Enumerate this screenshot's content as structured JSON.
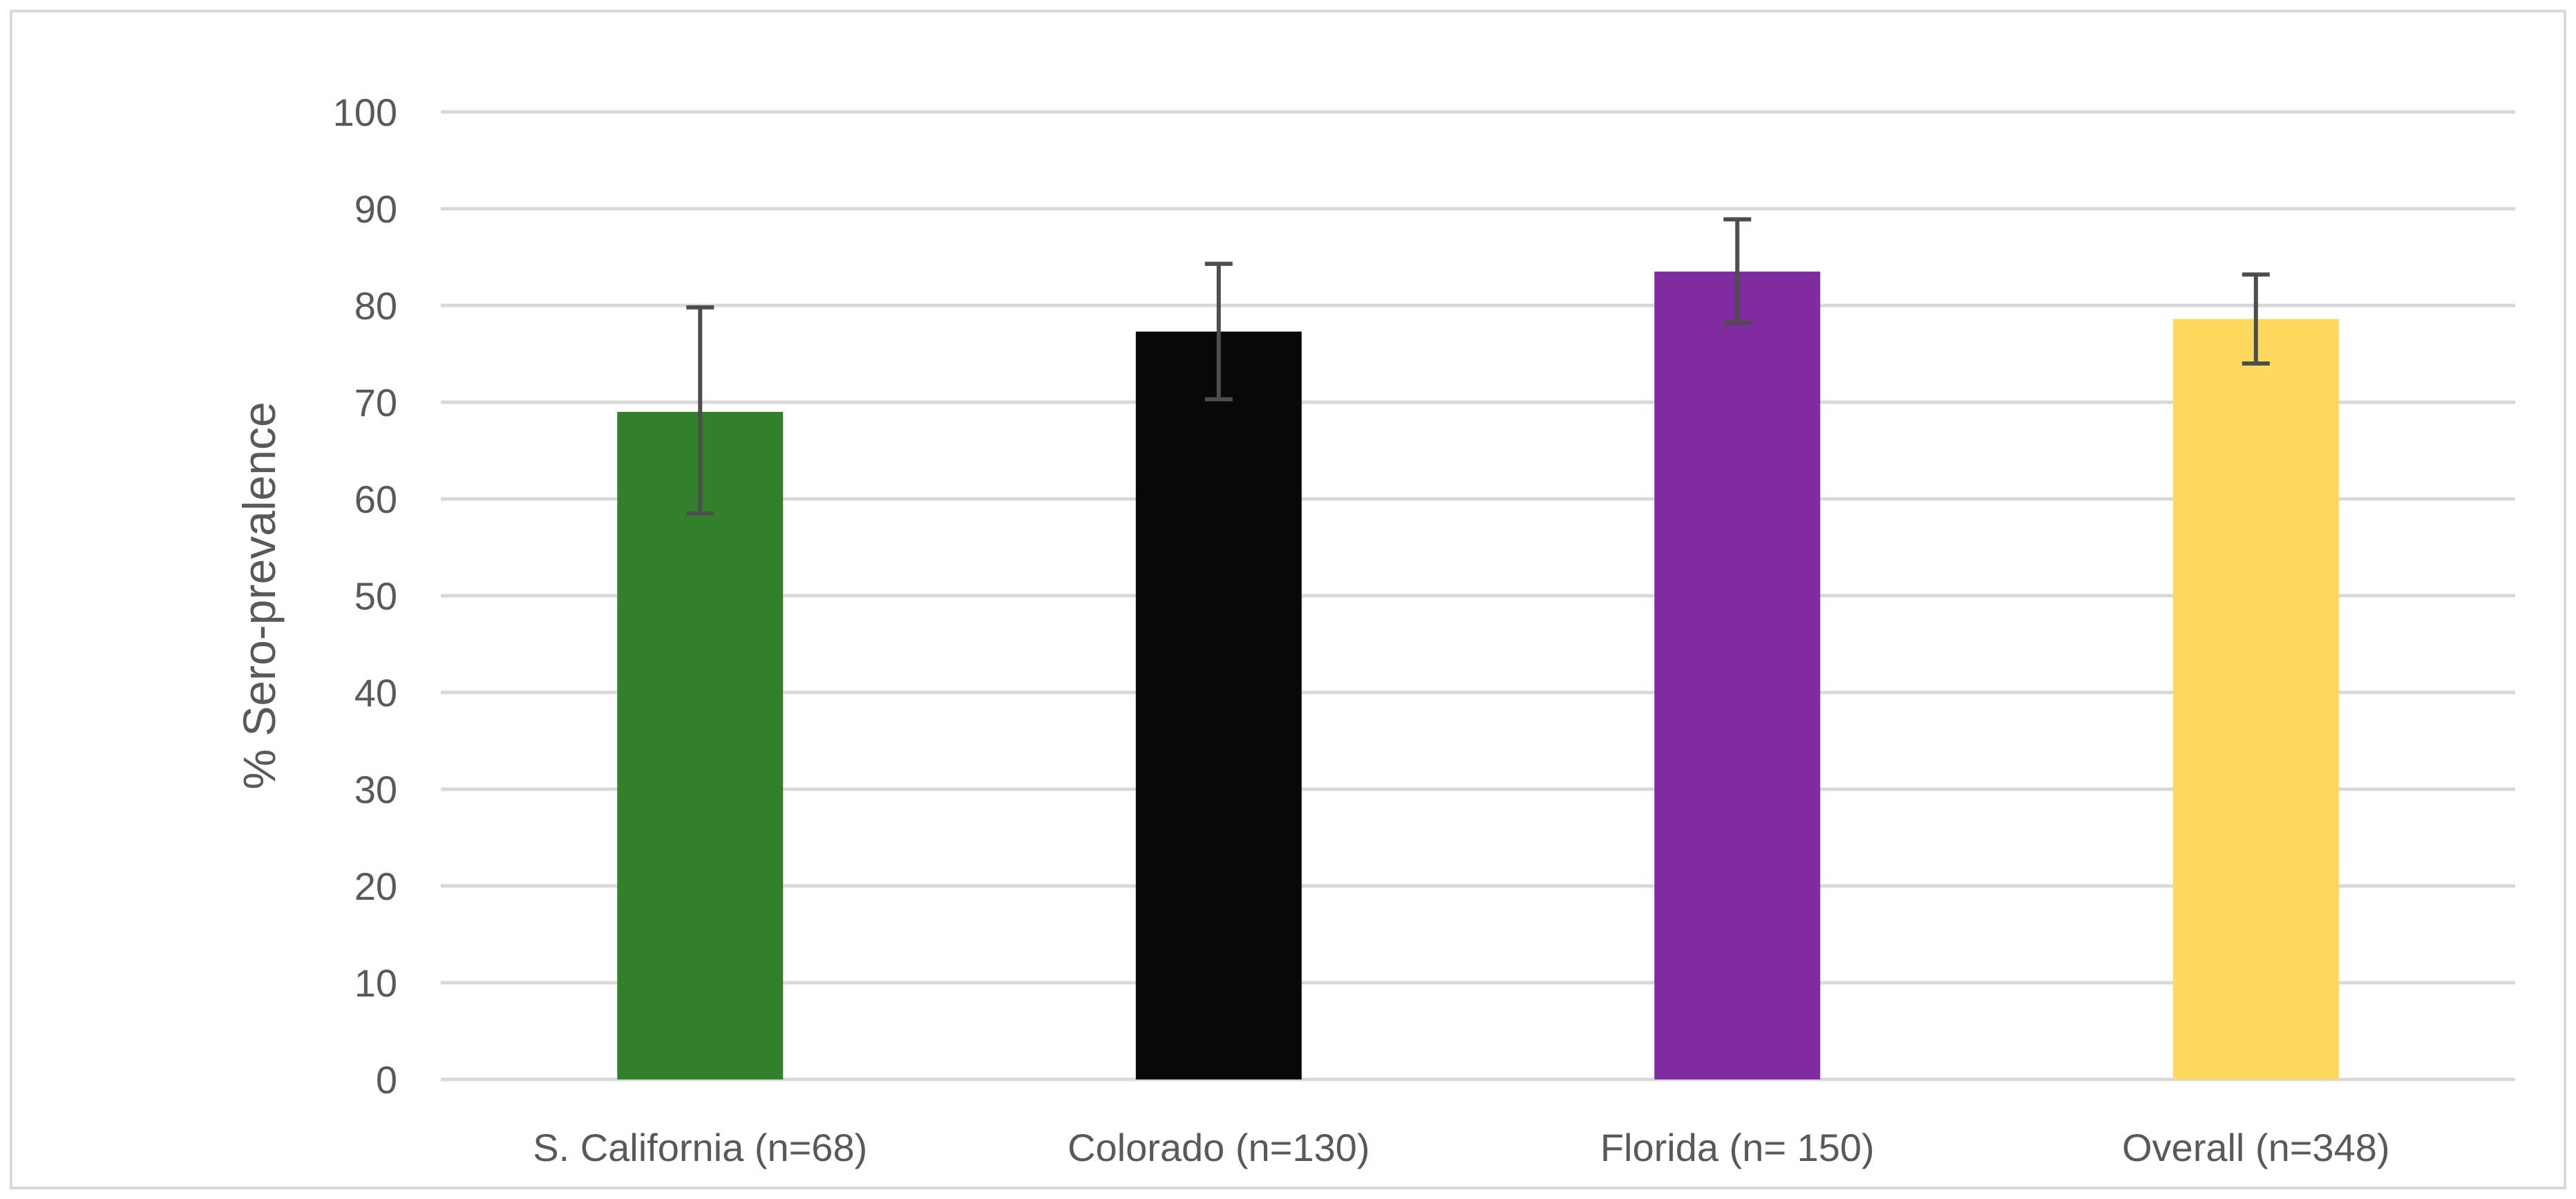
{
  "chart_data": {
    "type": "bar",
    "categories": [
      "S. California (n=68)",
      "Colorado (n=130)",
      "Florida (n= 150)",
      "Overall (n=348)"
    ],
    "values": [
      69,
      77.3,
      83.5,
      78.6
    ],
    "error_low": [
      58.5,
      70.3,
      78.2,
      74
    ],
    "error_high": [
      79.8,
      84.3,
      88.9,
      83.2
    ],
    "colors": [
      "#31812a",
      "#080808",
      "#7f2ca0",
      "#ffd95e"
    ],
    "title": "",
    "xlabel": "",
    "ylabel": "% Sero-prevalence",
    "ylim": [
      0,
      100
    ],
    "yticks": [
      0,
      10,
      20,
      30,
      40,
      50,
      60,
      70,
      80,
      90,
      100
    ],
    "grid": true,
    "legend": "none"
  }
}
